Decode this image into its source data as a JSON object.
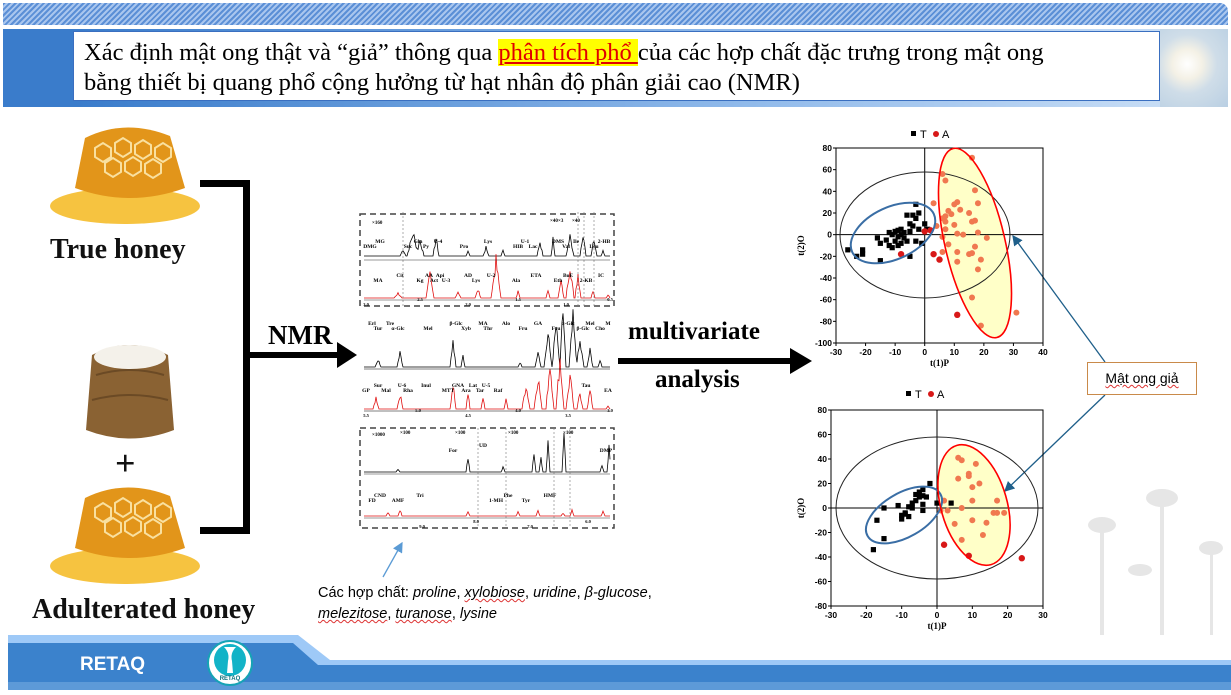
{
  "title": {
    "part1": "Xác định mật ong thật và “giả” thông qua ",
    "highlight": "phân tích phổ ",
    "part2": " của các hợp chất đặc trưng trong mật ong",
    "line2": "bằng thiết bị quang phổ cộng hưởng từ hạt nhân độ phân giải cao (NMR)"
  },
  "left": {
    "true_honey": "True honey",
    "plus": "+",
    "adulterated_honey": "Adulterated honey"
  },
  "flow": {
    "nmr": "NMR",
    "multivariate": "multivariate",
    "analysis": "analysis"
  },
  "spectra": {
    "multipliers": [
      "×160",
      "×1000",
      "×40",
      "×3",
      "×40",
      "×100",
      "×100",
      "×100",
      "×100"
    ],
    "panel1_black": [
      "DMG",
      "MG",
      "Suc",
      "Gln",
      "Py",
      "U-4",
      "Pro",
      "Lys",
      "HIB",
      "U-1",
      "Lac",
      "DMS",
      "Val",
      "Ile",
      "Leu",
      "2-HB"
    ],
    "panel1_red": [
      "MA",
      "Cit",
      "Kg",
      "AA",
      "Act",
      "Api",
      "U-3",
      "AD",
      "Lys",
      "U-2",
      "Ala",
      "ETA",
      "Eth",
      "BoE",
      "2-KB",
      "IC"
    ],
    "panel1_axis": [
      "3.0",
      "2.5",
      "2.0",
      "1.5",
      "1.0",
      "0.5"
    ],
    "panel2_black": [
      "α-Glc",
      "Erl",
      "Tur",
      "Tre",
      "Mel",
      "β-Glc",
      "Xyb",
      "MA",
      "Thr",
      "Alo",
      "Fru",
      "GA",
      "Fru",
      "α-Glc",
      "β-Glc",
      "Mel",
      "Cho",
      "M"
    ],
    "panel2_red": [
      "GP",
      "Sur",
      "Mal",
      "U-6",
      "Rha",
      "Inul",
      "MTT",
      "GNA",
      "Ara",
      "Lat",
      "Tar",
      "U-5",
      "Raf",
      "Tau",
      "EA"
    ],
    "panel2_axis": [
      "5.5",
      "5.0",
      "4.5",
      "4.0",
      "3.5",
      "3.0"
    ],
    "panel3_black": [
      "For",
      "UD",
      "DMP"
    ],
    "panel3_red": [
      "FD",
      "CND",
      "AMF",
      "Tri",
      "1-MH",
      "Phe",
      "Tyr",
      "HMF"
    ],
    "panel3_axis": [
      "9.0",
      "8.0",
      "7.0",
      "6.0"
    ]
  },
  "caption": {
    "prefix": "Các hợp chất: ",
    "items": [
      "proline",
      "xylobiose",
      "uridine",
      "β-glucose",
      "melezitose",
      "turanose",
      "lysine"
    ]
  },
  "callout": "Mật ong giả",
  "footer": {
    "brand": "RETAQ",
    "logo_text": "RETAQ"
  },
  "colors": {
    "true": "#000000",
    "adulterated": "#f07850",
    "adulterated_outlier": "#d81818",
    "ellipse_blue": "#3a6ea5",
    "ellipse_red": "#ff0000",
    "fill_yellow": "#ffffc8"
  },
  "chart_data": [
    {
      "type": "scatter",
      "title": "",
      "legend": [
        "T",
        "A"
      ],
      "legend_position": "top",
      "xlabel": "t(1)P",
      "ylabel": "t(2)O",
      "xlim": [
        -30,
        40
      ],
      "ylim": [
        -100,
        80
      ],
      "xticks": [
        "-30",
        "-20",
        "-10",
        "0",
        "10",
        "20",
        "30",
        "40"
      ],
      "yticks": [
        "80",
        "60",
        "40",
        "20",
        "0",
        "-20",
        "-40",
        "-60",
        "-80",
        "-100"
      ],
      "series": [
        {
          "name": "T",
          "points": [
            [
              -26,
              -14
            ],
            [
              -23,
              -20
            ],
            [
              -21,
              -14
            ],
            [
              -21,
              -18
            ],
            [
              -16,
              -3
            ],
            [
              -15,
              -8
            ],
            [
              -15,
              -24
            ],
            [
              -13,
              -5
            ],
            [
              -12,
              2
            ],
            [
              -12,
              -10
            ],
            [
              -11,
              -12
            ],
            [
              -11,
              0
            ],
            [
              -10,
              3
            ],
            [
              -10,
              -6
            ],
            [
              -9,
              4
            ],
            [
              -9,
              -2
            ],
            [
              -9,
              -10
            ],
            [
              -8,
              5
            ],
            [
              -8,
              0
            ],
            [
              -8,
              -8
            ],
            [
              -7,
              -3
            ],
            [
              -7,
              2
            ],
            [
              -6,
              -6
            ],
            [
              -5,
              10
            ],
            [
              -5,
              3
            ],
            [
              -5,
              -20
            ],
            [
              -4,
              18
            ],
            [
              -4,
              8
            ],
            [
              -3,
              15
            ],
            [
              -3,
              -6
            ],
            [
              -2,
              20
            ],
            [
              -2,
              5
            ],
            [
              -1,
              -8
            ],
            [
              0,
              10
            ],
            [
              1,
              5
            ],
            [
              -3,
              28
            ],
            [
              -6,
              18
            ]
          ]
        },
        {
          "name": "A",
          "points": [
            [
              6,
              56
            ],
            [
              16,
              71
            ],
            [
              7,
              50
            ],
            [
              3,
              29
            ],
            [
              17,
              41
            ],
            [
              10,
              28
            ],
            [
              11,
              30
            ],
            [
              18,
              29
            ],
            [
              15,
              20
            ],
            [
              7,
              17
            ],
            [
              8,
              22
            ],
            [
              12,
              23
            ],
            [
              6,
              15
            ],
            [
              7,
              12
            ],
            [
              9,
              19
            ],
            [
              16,
              12
            ],
            [
              17,
              13
            ],
            [
              4,
              8
            ],
            [
              7,
              5
            ],
            [
              10,
              9
            ],
            [
              11,
              1
            ],
            [
              13,
              0
            ],
            [
              18,
              2
            ],
            [
              21,
              -3
            ],
            [
              6,
              -2
            ],
            [
              8,
              -9
            ],
            [
              17,
              -11
            ],
            [
              15,
              -18
            ],
            [
              16,
              -17
            ],
            [
              11,
              -16
            ],
            [
              6,
              -16
            ],
            [
              11,
              -25
            ],
            [
              19,
              -23
            ],
            [
              18,
              -32
            ],
            [
              16,
              -58
            ],
            [
              31,
              -72
            ],
            [
              19,
              -84
            ]
          ]
        },
        {
          "name": "A-outlier",
          "points": [
            [
              -8,
              -18
            ],
            [
              0,
              3
            ],
            [
              2,
              4
            ],
            [
              3,
              -18
            ],
            [
              5,
              -23
            ],
            [
              11,
              -74
            ]
          ]
        }
      ]
    },
    {
      "type": "scatter",
      "title": "",
      "legend": [
        "T",
        "A"
      ],
      "legend_position": "top",
      "xlabel": "t(1)P",
      "ylabel": "t(2)O",
      "xlim": [
        -30,
        30
      ],
      "ylim": [
        -80,
        80
      ],
      "xticks": [
        "-30",
        "-20",
        "-10",
        "0",
        "10",
        "20",
        "30"
      ],
      "yticks": [
        "80",
        "60",
        "40",
        "20",
        "0",
        "-20",
        "-40",
        "-60",
        "-80"
      ],
      "series": [
        {
          "name": "T",
          "points": [
            [
              -18,
              -34
            ],
            [
              -17,
              -10
            ],
            [
              -15,
              0
            ],
            [
              -15,
              -25
            ],
            [
              -11,
              2
            ],
            [
              -10,
              -9
            ],
            [
              -10,
              -6
            ],
            [
              -9,
              -5
            ],
            [
              -9,
              -4
            ],
            [
              -8,
              -7
            ],
            [
              -8,
              1
            ],
            [
              -7,
              0
            ],
            [
              -7,
              4
            ],
            [
              -6,
              6
            ],
            [
              -6,
              11
            ],
            [
              -5,
              13
            ],
            [
              -5,
              9
            ],
            [
              -4,
              15
            ],
            [
              -4,
              10
            ],
            [
              -4,
              3
            ],
            [
              -4,
              -2
            ],
            [
              -3,
              9
            ],
            [
              -2,
              20
            ],
            [
              0,
              4
            ],
            [
              4,
              4
            ]
          ]
        },
        {
          "name": "A",
          "points": [
            [
              6,
              41
            ],
            [
              7,
              39
            ],
            [
              11,
              36
            ],
            [
              6,
              24
            ],
            [
              9,
              28
            ],
            [
              9,
              26
            ],
            [
              12,
              20
            ],
            [
              10,
              17
            ],
            [
              2,
              6
            ],
            [
              10,
              6
            ],
            [
              17,
              6
            ],
            [
              1,
              -2
            ],
            [
              3,
              -2
            ],
            [
              7,
              0
            ],
            [
              16,
              -4
            ],
            [
              17,
              -4
            ],
            [
              19,
              -4
            ],
            [
              5,
              -13
            ],
            [
              10,
              -10
            ],
            [
              14,
              -12
            ],
            [
              7,
              -26
            ],
            [
              13,
              -22
            ]
          ]
        },
        {
          "name": "A-outlier",
          "points": [
            [
              2,
              -30
            ],
            [
              9,
              -39
            ],
            [
              24,
              -41
            ]
          ]
        }
      ]
    }
  ]
}
